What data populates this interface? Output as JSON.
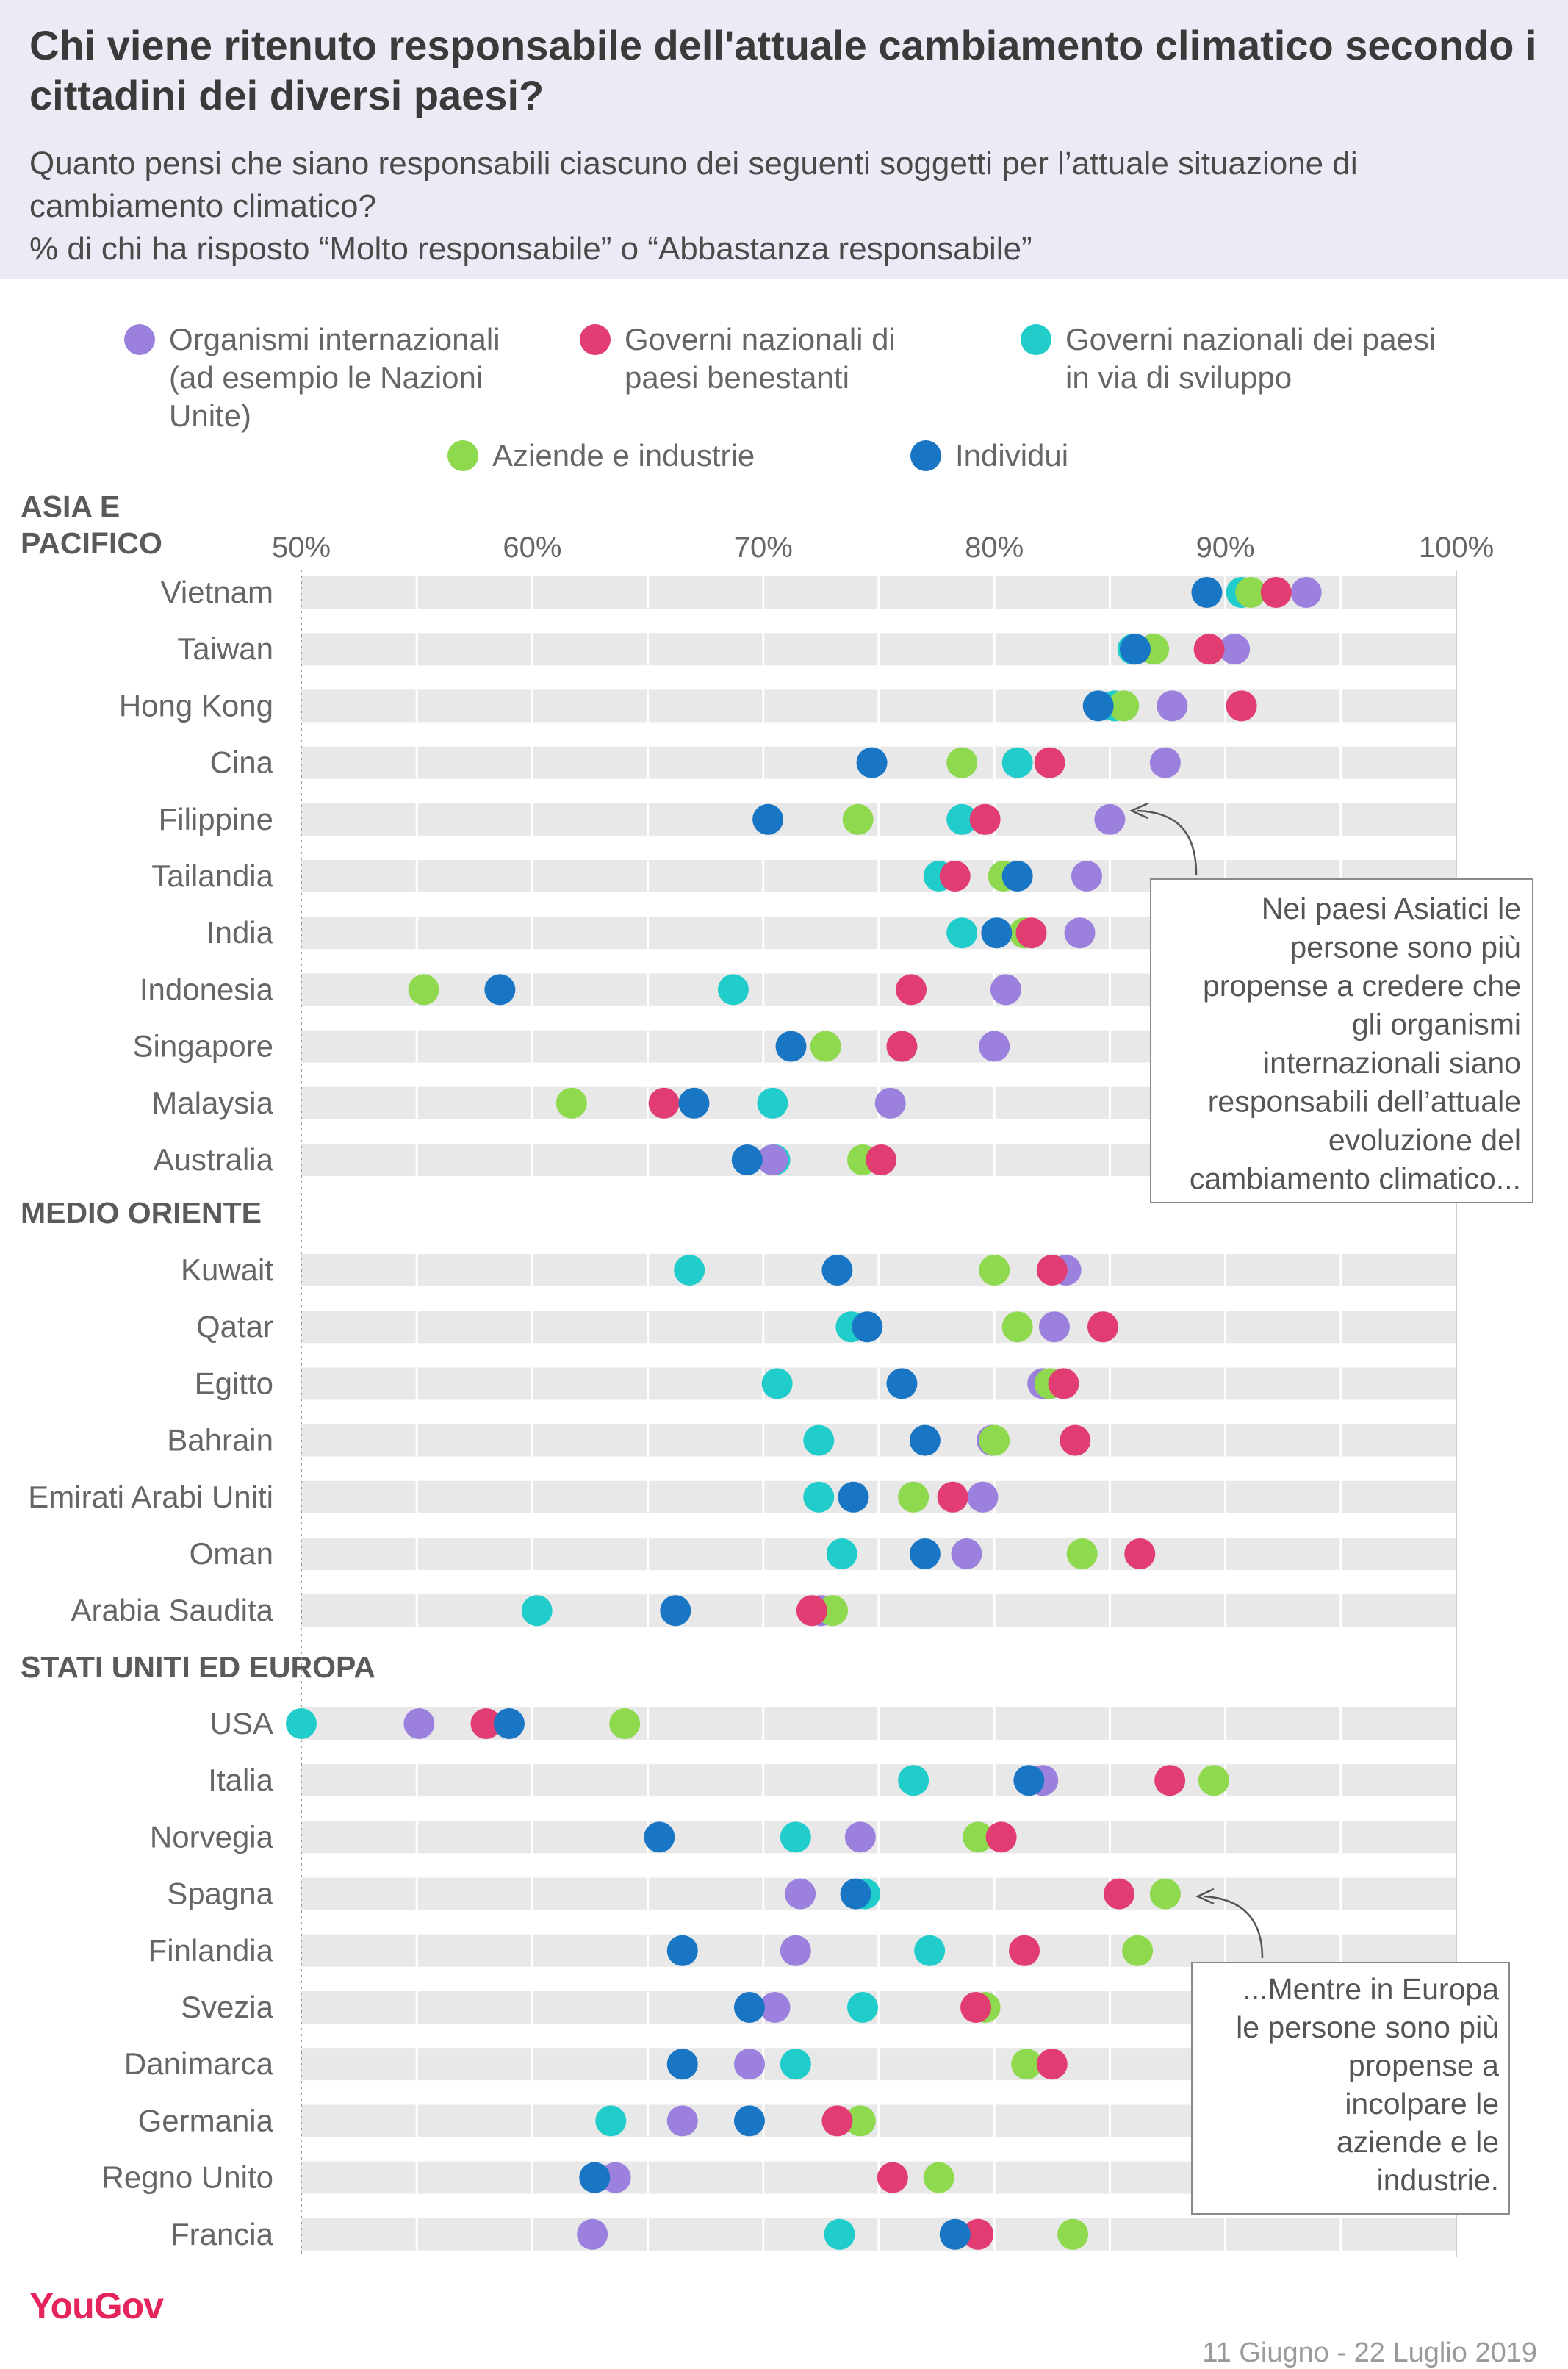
{
  "header": {
    "title": "Chi viene ritenuto responsabile dell'attuale cambiamento climatico secondo i cittadini dei diversi paesi?",
    "subtitle": "Quanto pensi che siano responsabili ciascuno dei seguenti soggetti per l’attuale situazione di cambiamento climatico?",
    "subtitle2": "% di chi ha risposto “Molto responsabile” o “Abbastanza responsabile”"
  },
  "footer": {
    "logo": "YouGov",
    "date": "11 Giugno - 22 Luglio 2019"
  },
  "annotations": [
    {
      "lines": [
        "Nei paesi Asiatici le",
        "persone sono più",
        "propense a credere che",
        "gli organismi",
        "internazionali siano",
        "responsabili dell’attuale",
        "evoluzione del",
        "cambiamento climatico..."
      ]
    },
    {
      "lines": [
        "...Mentre in Europa",
        "le persone sono più",
        "propense a",
        "incolpare le",
        "aziende e le",
        "industrie."
      ]
    }
  ],
  "chart_data": {
    "type": "scatter",
    "xlim": [
      50,
      100
    ],
    "xticks": [
      "50%",
      "60%",
      "70%",
      "80%",
      "90%",
      "100%"
    ],
    "grid": true,
    "legend_position": "top",
    "series": [
      {
        "name": "Organismi internazionali (ad esempio le Nazioni Unite)",
        "legend_lines": [
          "Organismi internazionali",
          "(ad esempio le Nazioni",
          "Unite)"
        ],
        "color": "#9b80dd"
      },
      {
        "name": "Governi nazionali di paesi benestanti",
        "legend_lines": [
          "Governi nazionali di",
          "paesi benestanti"
        ],
        "color": "#e23d73"
      },
      {
        "name": "Governi nazionali dei paesi in via di sviluppo",
        "legend_lines": [
          "Governi nazionali dei paesi",
          "in via di sviluppo"
        ],
        "color": "#20cdcb"
      },
      {
        "name": "Aziende e industrie",
        "legend_lines": [
          "Aziende e industrie"
        ],
        "color": "#8fd94e"
      },
      {
        "name": "Individui",
        "legend_lines": [
          "Individui"
        ],
        "color": "#1976c4"
      }
    ],
    "series_order_note": "values per country are listed in series order: Organismi, Governi benestanti, Governi sviluppo, Aziende, Individui",
    "groups": [
      {
        "name": "ASIA E PACIFICO",
        "name_lines": [
          "ASIA E",
          "PACIFICO"
        ],
        "countries": [
          {
            "name": "Vietnam",
            "values": [
              93.5,
              92.2,
              90.7,
              91.1,
              89.2
            ]
          },
          {
            "name": "Taiwan",
            "values": [
              90.4,
              89.3,
              86.0,
              86.9,
              86.1
            ]
          },
          {
            "name": "Hong Kong",
            "values": [
              87.7,
              90.7,
              85.2,
              85.6,
              84.5
            ]
          },
          {
            "name": "Cina",
            "values": [
              87.4,
              82.4,
              81.0,
              78.6,
              74.7
            ]
          },
          {
            "name": "Filippine",
            "values": [
              85.0,
              79.6,
              78.6,
              74.1,
              70.2
            ]
          },
          {
            "name": "Tailandia",
            "values": [
              84.0,
              78.3,
              77.6,
              80.4,
              81.0
            ]
          },
          {
            "name": "India",
            "values": [
              83.7,
              81.6,
              78.6,
              81.3,
              80.1
            ]
          },
          {
            "name": "Indonesia",
            "values": [
              80.5,
              76.4,
              68.7,
              55.3,
              58.6
            ]
          },
          {
            "name": "Singapore",
            "values": [
              80.0,
              76.0,
              76.0,
              72.7,
              71.2
            ]
          },
          {
            "name": "Malaysia",
            "values": [
              75.5,
              65.7,
              70.4,
              61.7,
              67.0
            ]
          },
          {
            "name": "Australia",
            "values": [
              70.4,
              75.1,
              70.5,
              74.3,
              69.3
            ]
          }
        ]
      },
      {
        "name": "MEDIO ORIENTE",
        "name_lines": [
          "MEDIO ORIENTE"
        ],
        "countries": [
          {
            "name": "Kuwait",
            "values": [
              83.1,
              82.5,
              66.8,
              80.0,
              73.2
            ]
          },
          {
            "name": "Qatar",
            "values": [
              82.6,
              84.7,
              73.8,
              81.0,
              74.5
            ]
          },
          {
            "name": "Egitto",
            "values": [
              82.1,
              83.0,
              70.6,
              82.4,
              76.0
            ]
          },
          {
            "name": "Bahrain",
            "values": [
              79.9,
              83.5,
              72.4,
              80.0,
              77.0
            ]
          },
          {
            "name": "Emirati Arabi Uniti",
            "values": [
              79.5,
              78.2,
              72.4,
              76.5,
              73.9
            ]
          },
          {
            "name": "Oman",
            "values": [
              78.8,
              86.3,
              73.4,
              83.8,
              77.0
            ]
          },
          {
            "name": "Arabia Saudita",
            "values": [
              72.5,
              72.1,
              60.2,
              73.0,
              66.2
            ]
          }
        ]
      },
      {
        "name": "STATI UNITI ED EUROPA",
        "name_lines": [
          "STATI UNITI ED EUROPA"
        ],
        "countries": [
          {
            "name": "USA",
            "values": [
              55.1,
              58.0,
              50.0,
              64.0,
              59.0
            ]
          },
          {
            "name": "Italia",
            "values": [
              82.1,
              87.6,
              76.5,
              89.5,
              81.5
            ]
          },
          {
            "name": "Norvegia",
            "values": [
              74.2,
              80.3,
              71.4,
              79.3,
              65.5
            ]
          },
          {
            "name": "Spagna",
            "values": [
              71.6,
              85.4,
              74.4,
              87.4,
              74.0
            ]
          },
          {
            "name": "Finlandia",
            "values": [
              71.4,
              81.3,
              77.2,
              86.2,
              66.5
            ]
          },
          {
            "name": "Svezia",
            "values": [
              70.5,
              79.2,
              74.3,
              79.6,
              69.4
            ]
          },
          {
            "name": "Danimarca",
            "values": [
              69.4,
              82.5,
              71.4,
              81.4,
              66.5
            ]
          },
          {
            "name": "Germania",
            "values": [
              66.5,
              73.2,
              63.4,
              74.2,
              69.4
            ]
          },
          {
            "name": "Regno Unito",
            "values": [
              63.6,
              75.6,
              null,
              77.6,
              62.7
            ]
          },
          {
            "name": "Francia",
            "values": [
              62.6,
              79.3,
              73.3,
              83.4,
              78.3
            ]
          }
        ]
      }
    ]
  }
}
